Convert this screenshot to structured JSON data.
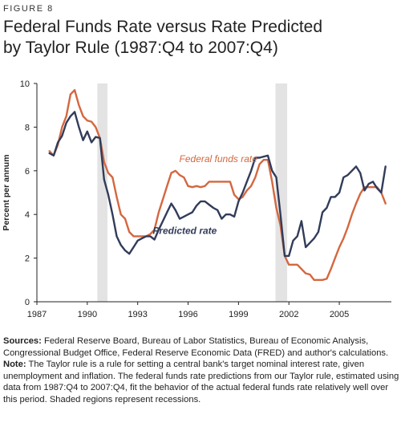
{
  "figure": {
    "label": "FIGURE 8",
    "title_line1": "Federal Funds Rate versus Rate Predicted",
    "title_line2": "by Taylor Rule (1987:Q4 to 2007:Q4)"
  },
  "notes": {
    "sources_label": "Sources:",
    "sources_text": "Federal Reserve Board, Bureau of Labor Statistics, Bureau of Economic Analysis, Congressional Budget Office, Federal Reserve Economic Data (FRED) and author's calculations.",
    "note_label": "Note:",
    "note_text": "The Taylor rule is a rule for setting a central bank's target nominal interest rate, given unemployment and inflation. The federal funds rate predictions from our Taylor rule, estimated using data from 1987:Q4 to 2007:Q4, fit the behavior of the actual federal funds rate relatively well over this period. Shaded regions represent recessions."
  },
  "colors": {
    "federal_funds": "#d4673f",
    "predicted": "#323c5a",
    "recession": "#e3e3e3",
    "axis": "#222222"
  },
  "chart_data": {
    "type": "line",
    "xlabel": "",
    "ylabel": "Percent per annum",
    "xlim": [
      1987,
      2008.1
    ],
    "ylim": [
      0,
      10
    ],
    "x_ticks": [
      1987,
      1990,
      1993,
      1996,
      1999,
      2002,
      2005
    ],
    "y_ticks": [
      0,
      2,
      4,
      6,
      8,
      10
    ],
    "grid": false,
    "recessions": [
      [
        1990.6,
        1991.2
      ],
      [
        2001.2,
        2001.9
      ]
    ],
    "annotations": [
      {
        "text": "Federal funds rate",
        "series": "federal_funds",
        "x": 1997.8,
        "y": 6.4
      },
      {
        "text": "Predicted rate",
        "series": "predicted",
        "x": 1995.8,
        "y": 3.1
      }
    ],
    "series": [
      {
        "key": "federal_funds",
        "name": "Federal funds rate",
        "x": [
          1987.75,
          1988.0,
          1988.25,
          1988.5,
          1988.75,
          1989.0,
          1989.25,
          1989.5,
          1989.75,
          1990.0,
          1990.25,
          1990.5,
          1990.75,
          1991.0,
          1991.25,
          1991.5,
          1991.75,
          1992.0,
          1992.25,
          1992.5,
          1992.75,
          1993.0,
          1993.25,
          1993.5,
          1993.75,
          1994.0,
          1994.25,
          1994.5,
          1994.75,
          1995.0,
          1995.25,
          1995.5,
          1995.75,
          1996.0,
          1996.25,
          1996.5,
          1996.75,
          1997.0,
          1997.25,
          1997.5,
          1997.75,
          1998.0,
          1998.25,
          1998.5,
          1998.75,
          1999.0,
          1999.25,
          1999.5,
          1999.75,
          2000.0,
          2000.25,
          2000.5,
          2000.75,
          2001.0,
          2001.25,
          2001.5,
          2001.75,
          2002.0,
          2002.25,
          2002.5,
          2002.75,
          2003.0,
          2003.25,
          2003.5,
          2003.75,
          2004.0,
          2004.25,
          2004.5,
          2004.75,
          2005.0,
          2005.25,
          2005.5,
          2005.75,
          2006.0,
          2006.25,
          2006.5,
          2006.75,
          2007.0,
          2007.25,
          2007.5,
          2007.75
        ],
        "values": [
          6.9,
          6.7,
          7.2,
          8.0,
          8.5,
          9.5,
          9.7,
          9.0,
          8.5,
          8.3,
          8.25,
          8.0,
          7.5,
          6.4,
          5.9,
          5.7,
          4.8,
          4.0,
          3.8,
          3.2,
          3.0,
          3.0,
          3.0,
          3.0,
          3.1,
          3.3,
          4.1,
          4.7,
          5.3,
          5.9,
          6.0,
          5.8,
          5.7,
          5.3,
          5.25,
          5.3,
          5.25,
          5.3,
          5.5,
          5.5,
          5.5,
          5.5,
          5.5,
          5.5,
          4.9,
          4.7,
          4.8,
          5.1,
          5.3,
          5.7,
          6.3,
          6.5,
          6.5,
          5.5,
          4.3,
          3.5,
          2.1,
          1.7,
          1.7,
          1.7,
          1.5,
          1.3,
          1.25,
          1.0,
          1.0,
          1.0,
          1.05,
          1.5,
          2.0,
          2.5,
          2.9,
          3.4,
          4.0,
          4.5,
          4.95,
          5.25,
          5.25,
          5.25,
          5.25,
          5.0,
          4.5
        ]
      },
      {
        "key": "predicted",
        "name": "Predicted rate",
        "x": [
          1987.75,
          1988.0,
          1988.25,
          1988.5,
          1988.75,
          1989.0,
          1989.25,
          1989.5,
          1989.75,
          1990.0,
          1990.25,
          1990.5,
          1990.75,
          1991.0,
          1991.25,
          1991.5,
          1991.75,
          1992.0,
          1992.25,
          1992.5,
          1992.75,
          1993.0,
          1993.25,
          1993.5,
          1993.75,
          1994.0,
          1994.25,
          1994.5,
          1994.75,
          1995.0,
          1995.25,
          1995.5,
          1995.75,
          1996.0,
          1996.25,
          1996.5,
          1996.75,
          1997.0,
          1997.25,
          1997.5,
          1997.75,
          1998.0,
          1998.25,
          1998.5,
          1998.75,
          1999.0,
          1999.25,
          1999.5,
          1999.75,
          2000.0,
          2000.25,
          2000.5,
          2000.75,
          2001.0,
          2001.25,
          2001.5,
          2001.75,
          2002.0,
          2002.25,
          2002.5,
          2002.75,
          2003.0,
          2003.25,
          2003.5,
          2003.75,
          2004.0,
          2004.25,
          2004.5,
          2004.75,
          2005.0,
          2005.25,
          2005.5,
          2005.75,
          2006.0,
          2006.25,
          2006.5,
          2006.75,
          2007.0,
          2007.25,
          2007.5,
          2007.75
        ],
        "values": [
          6.8,
          6.7,
          7.3,
          7.6,
          8.2,
          8.5,
          8.7,
          8.0,
          7.4,
          7.8,
          7.3,
          7.55,
          7.5,
          5.6,
          4.9,
          4.0,
          3.0,
          2.6,
          2.35,
          2.2,
          2.5,
          2.8,
          2.9,
          3.0,
          3.0,
          2.85,
          3.3,
          3.7,
          4.1,
          4.5,
          4.2,
          3.8,
          3.9,
          4.0,
          4.1,
          4.4,
          4.6,
          4.6,
          4.45,
          4.3,
          4.2,
          3.8,
          4.0,
          4.0,
          3.9,
          4.6,
          5.0,
          5.5,
          6.0,
          6.6,
          6.6,
          6.65,
          6.7,
          6.0,
          5.7,
          4.0,
          2.1,
          2.1,
          2.8,
          3.0,
          3.7,
          2.5,
          2.7,
          2.9,
          3.2,
          4.1,
          4.3,
          4.8,
          4.8,
          5.0,
          5.7,
          5.8,
          6.0,
          6.2,
          5.9,
          5.1,
          5.4,
          5.5,
          5.2,
          5.0,
          6.2
        ]
      }
    ]
  }
}
